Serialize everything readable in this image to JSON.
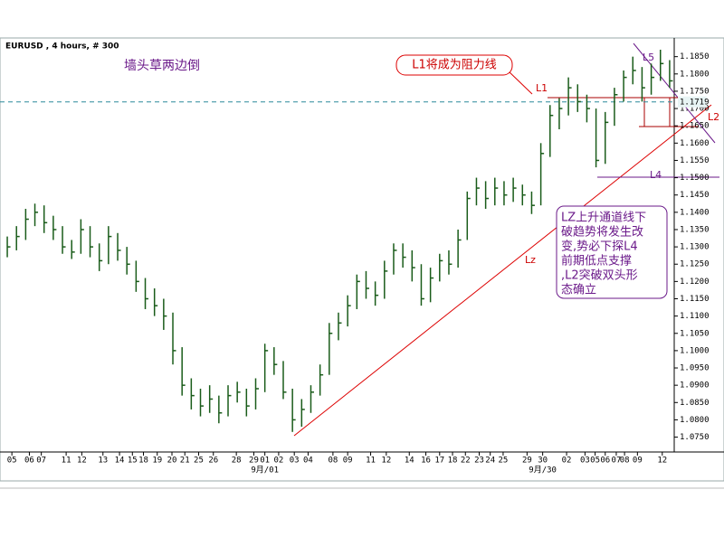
{
  "chart_data": {
    "type": "hlc",
    "symbol": "EURUSD , 4 hours, # 300",
    "title": "墙头草两边倒",
    "color": "#1a5c1a",
    "xlim": [
      -0.3,
      72.5
    ],
    "ylim": [
      1.0707,
      1.1904
    ],
    "high": [
      1.133,
      1.136,
      1.141,
      1.1425,
      1.142,
      1.139,
      1.136,
      1.132,
      1.138,
      1.136,
      1.131,
      1.136,
      1.134,
      1.13,
      1.126,
      1.121,
      1.118,
      1.115,
      1.111,
      1.101,
      1.092,
      1.089,
      1.09,
      1.087,
      1.09,
      1.091,
      1.089,
      1.092,
      1.102,
      1.101,
      1.097,
      1.089,
      1.086,
      1.09,
      1.096,
      1.108,
      1.111,
      1.116,
      1.122,
      1.123,
      1.12,
      1.126,
      1.131,
      1.131,
      1.129,
      1.125,
      1.124,
      1.128,
      1.129,
      1.135,
      1.146,
      1.15,
      1.149,
      1.15,
      1.149,
      1.15,
      1.148,
      1.146,
      1.16,
      1.171,
      1.173,
      1.179,
      1.177,
      1.174,
      1.17,
      1.169,
      1.176,
      1.181,
      1.185,
      1.182,
      1.183,
      1.187,
      1.184
    ],
    "low": [
      1.127,
      1.129,
      1.132,
      1.136,
      1.134,
      1.132,
      1.128,
      1.1265,
      1.128,
      1.127,
      1.123,
      1.125,
      1.126,
      1.122,
      1.117,
      1.112,
      1.11,
      1.106,
      1.096,
      1.087,
      1.083,
      1.081,
      1.082,
      1.079,
      1.081,
      1.085,
      1.081,
      1.083,
      1.088,
      1.093,
      1.086,
      1.0765,
      1.078,
      1.082,
      1.087,
      1.093,
      1.103,
      1.107,
      1.112,
      1.115,
      1.113,
      1.115,
      1.122,
      1.124,
      1.12,
      1.113,
      1.114,
      1.12,
      1.122,
      1.124,
      1.132,
      1.142,
      1.141,
      1.142,
      1.142,
      1.143,
      1.142,
      1.1395,
      1.142,
      1.156,
      1.164,
      1.168,
      1.169,
      1.166,
      1.153,
      1.154,
      1.165,
      1.172,
      1.177,
      1.172,
      1.174,
      1.178,
      1.176
    ],
    "close": [
      1.13,
      1.133,
      1.138,
      1.14,
      1.137,
      1.135,
      1.13,
      1.1285,
      1.135,
      1.13,
      1.126,
      1.133,
      1.129,
      1.125,
      1.12,
      1.115,
      1.113,
      1.11,
      1.1,
      1.09,
      1.087,
      1.084,
      1.086,
      1.082,
      1.087,
      1.088,
      1.084,
      1.089,
      1.1,
      1.096,
      1.088,
      1.08,
      1.083,
      1.088,
      1.093,
      1.105,
      1.108,
      1.113,
      1.12,
      1.118,
      1.116,
      1.123,
      1.129,
      1.127,
      1.124,
      1.115,
      1.121,
      1.126,
      1.125,
      1.132,
      1.144,
      1.147,
      1.144,
      1.147,
      1.145,
      1.147,
      1.145,
      1.142,
      1.157,
      1.168,
      1.17,
      1.176,
      1.172,
      1.17,
      1.155,
      1.166,
      1.174,
      1.179,
      1.181,
      1.176,
      1.179,
      1.183,
      1.178
    ],
    "yticks": [
      {
        "value": 1.075,
        "label": "1.0750"
      },
      {
        "value": 1.08,
        "label": "1.0800"
      },
      {
        "value": 1.085,
        "label": "1.0850"
      },
      {
        "value": 1.09,
        "label": "1.0900"
      },
      {
        "value": 1.095,
        "label": "1.0950"
      },
      {
        "value": 1.1,
        "label": "1.1000"
      },
      {
        "value": 1.105,
        "label": "1.1050"
      },
      {
        "value": 1.11,
        "label": "1.1100"
      },
      {
        "value": 1.115,
        "label": "1.1150"
      },
      {
        "value": 1.12,
        "label": "1.1200"
      },
      {
        "value": 1.125,
        "label": "1.1250"
      },
      {
        "value": 1.13,
        "label": "1.1300"
      },
      {
        "value": 1.135,
        "label": "1.1350"
      },
      {
        "value": 1.14,
        "label": "1.1400"
      },
      {
        "value": 1.145,
        "label": "1.1450"
      },
      {
        "value": 1.15,
        "label": "1.1500"
      },
      {
        "value": 1.155,
        "label": "1.1550"
      },
      {
        "value": 1.16,
        "label": "1.1600"
      },
      {
        "value": 1.165,
        "label": "1.1650"
      },
      {
        "value": 1.17,
        "label": "1.1700"
      },
      {
        "value": 1.175,
        "label": "1.1750"
      },
      {
        "value": 1.18,
        "label": "1.1800"
      },
      {
        "value": 1.185,
        "label": "1.1850"
      }
    ],
    "xticks": [
      {
        "value": 0.5,
        "label": "05"
      },
      {
        "value": 2.4,
        "label": "06"
      },
      {
        "value": 3.7,
        "label": "07"
      },
      {
        "value": 6.4,
        "label": "11"
      },
      {
        "value": 8.1,
        "label": "12"
      },
      {
        "value": 10.4,
        "label": "13"
      },
      {
        "value": 12.2,
        "label": "14"
      },
      {
        "value": 13.6,
        "label": "15"
      },
      {
        "value": 14.8,
        "label": "18"
      },
      {
        "value": 16.3,
        "label": "19"
      },
      {
        "value": 17.9,
        "label": "20"
      },
      {
        "value": 19.3,
        "label": "21"
      },
      {
        "value": 20.8,
        "label": "25"
      },
      {
        "value": 22.4,
        "label": "26"
      },
      {
        "value": 24.9,
        "label": "28"
      },
      {
        "value": 26.8,
        "label": "29"
      },
      {
        "value": 28.0,
        "label": "01"
      },
      {
        "value": 29.5,
        "label": "02"
      },
      {
        "value": 31.2,
        "label": "03"
      },
      {
        "value": 32.7,
        "label": "04"
      },
      {
        "value": 35.4,
        "label": "08"
      },
      {
        "value": 37.0,
        "label": "09"
      },
      {
        "value": 39.5,
        "label": "11"
      },
      {
        "value": 41.2,
        "label": "12"
      },
      {
        "value": 43.7,
        "label": "14"
      },
      {
        "value": 45.5,
        "label": "16"
      },
      {
        "value": 47.0,
        "label": "17"
      },
      {
        "value": 48.4,
        "label": "18"
      },
      {
        "value": 49.8,
        "label": "22"
      },
      {
        "value": 51.3,
        "label": "23"
      },
      {
        "value": 52.5,
        "label": "24"
      },
      {
        "value": 53.9,
        "label": "25"
      },
      {
        "value": 56.5,
        "label": "29"
      },
      {
        "value": 58.2,
        "label": "30"
      },
      {
        "value": 60.8,
        "label": "02"
      },
      {
        "value": 62.8,
        "label": "03"
      },
      {
        "value": 63.9,
        "label": "05"
      },
      {
        "value": 65.0,
        "label": "06"
      },
      {
        "value": 66.2,
        "label": "07"
      },
      {
        "value": 67.1,
        "label": "08"
      },
      {
        "value": 68.5,
        "label": "09"
      },
      {
        "value": 71.2,
        "label": "12"
      }
    ],
    "month_ticks": [
      {
        "value": 28.0,
        "label": "9月/01"
      },
      {
        "value": 58.2,
        "label": "9月/30"
      }
    ],
    "current_price": {
      "value": 1.1719,
      "label": "1.1719"
    },
    "callout": "L1将成为阻力线",
    "line_labels": [
      "L1",
      "L5",
      "L2",
      "L4",
      "Lz"
    ],
    "note_lines": [
      "LZ上升通道线下",
      "破趋势将发生改",
      "变,势必下探L4",
      "前期低点支撑",
      ",L2突破双头形",
      "态确立"
    ]
  }
}
